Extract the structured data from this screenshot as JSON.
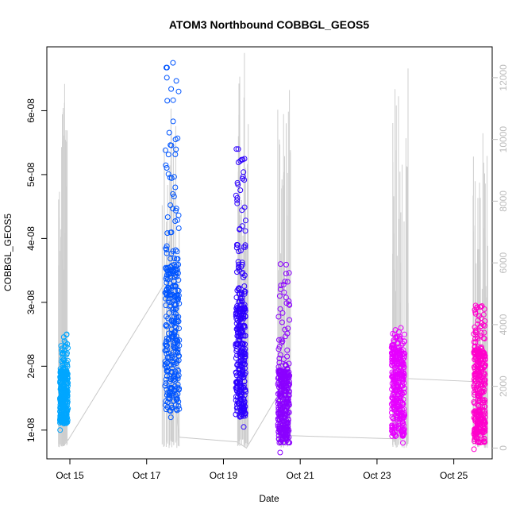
{
  "chart_data": {
    "type": "scatter",
    "title": "ATOM3 Northbound COBBGL_GEOS5",
    "xlabel": "Date",
    "ylabel": "COBBGL_GEOS5",
    "x_ticks": [
      "Oct 15",
      "Oct 17",
      "Oct 19",
      "Oct 21",
      "Oct 23",
      "Oct 25"
    ],
    "x_tick_values": [
      15,
      17,
      19,
      21,
      23,
      25
    ],
    "xlim": [
      14.4,
      26.0
    ],
    "ylim": [
      5.5e-09,
      7e-08
    ],
    "y_ticks": [
      "1e-08",
      "2e-08",
      "3e-08",
      "4e-08",
      "5e-08",
      "6e-08"
    ],
    "y_tick_values": [
      1e-08,
      2e-08,
      3e-08,
      4e-08,
      5e-08,
      6e-08
    ],
    "y2_ticks": [
      "0",
      "2000",
      "4000",
      "6000",
      "8000",
      "10000",
      "12000"
    ],
    "y2_tick_values": [
      0,
      2000,
      4000,
      6000,
      8000,
      10000,
      12000
    ],
    "y2lim": [
      -350,
      13000
    ],
    "series_colors": [
      "#00a6ff",
      "#0055ff",
      "#2d00ff",
      "#8b00ff",
      "#e600ff",
      "#ff00cc"
    ],
    "series": [
      {
        "x_range": [
          14.74,
          14.95
        ],
        "y_min": 1e-08,
        "y_max": 2.5e-08,
        "y_core": [
          1.1e-08,
          1.9e-08
        ]
      },
      {
        "x_range": [
          17.48,
          17.85
        ],
        "y_min": 1.2e-08,
        "y_max": 6.75e-08,
        "y_core": [
          1.3e-08,
          3.5e-08
        ]
      },
      {
        "x_range": [
          19.32,
          19.58
        ],
        "y_min": 1.05e-08,
        "y_max": 5.4e-08,
        "y_core": [
          1.2e-08,
          2.9e-08
        ]
      },
      {
        "x_range": [
          20.42,
          20.72
        ],
        "y_min": 6.5e-09,
        "y_max": 3.6e-08,
        "y_core": [
          8e-09,
          1.9e-08
        ]
      },
      {
        "x_range": [
          23.38,
          23.72
        ],
        "y_min": 8e-09,
        "y_max": 2.6e-08,
        "y_core": [
          9e-09,
          2.2e-08
        ]
      },
      {
        "x_range": [
          25.52,
          25.82
        ],
        "y_min": 7e-09,
        "y_max": 2.95e-08,
        "y_core": [
          8e-09,
          2.2e-08
        ]
      }
    ],
    "altitude_path": [
      [
        14.72,
        700
      ],
      [
        14.95,
        250
      ],
      [
        17.45,
        5300
      ],
      [
        17.85,
        350
      ],
      [
        19.35,
        200
      ],
      [
        19.6,
        0
      ],
      [
        20.65,
        2200
      ],
      [
        20.75,
        400
      ],
      [
        23.45,
        300
      ],
      [
        23.8,
        2250
      ],
      [
        25.6,
        2150
      ],
      [
        25.85,
        100
      ]
    ],
    "altitude_spikes": [
      {
        "x_range": [
          14.7,
          14.95
        ],
        "max": 11800
      },
      {
        "x_range": [
          17.4,
          17.85
        ],
        "max": 11000
      },
      {
        "x_range": [
          19.3,
          19.65
        ],
        "max": 12800
      },
      {
        "x_range": [
          20.4,
          20.75
        ],
        "max": 11600
      },
      {
        "x_range": [
          23.4,
          23.85
        ],
        "max": 12300
      },
      {
        "x_range": [
          25.5,
          25.9
        ],
        "max": 10200
      }
    ]
  }
}
